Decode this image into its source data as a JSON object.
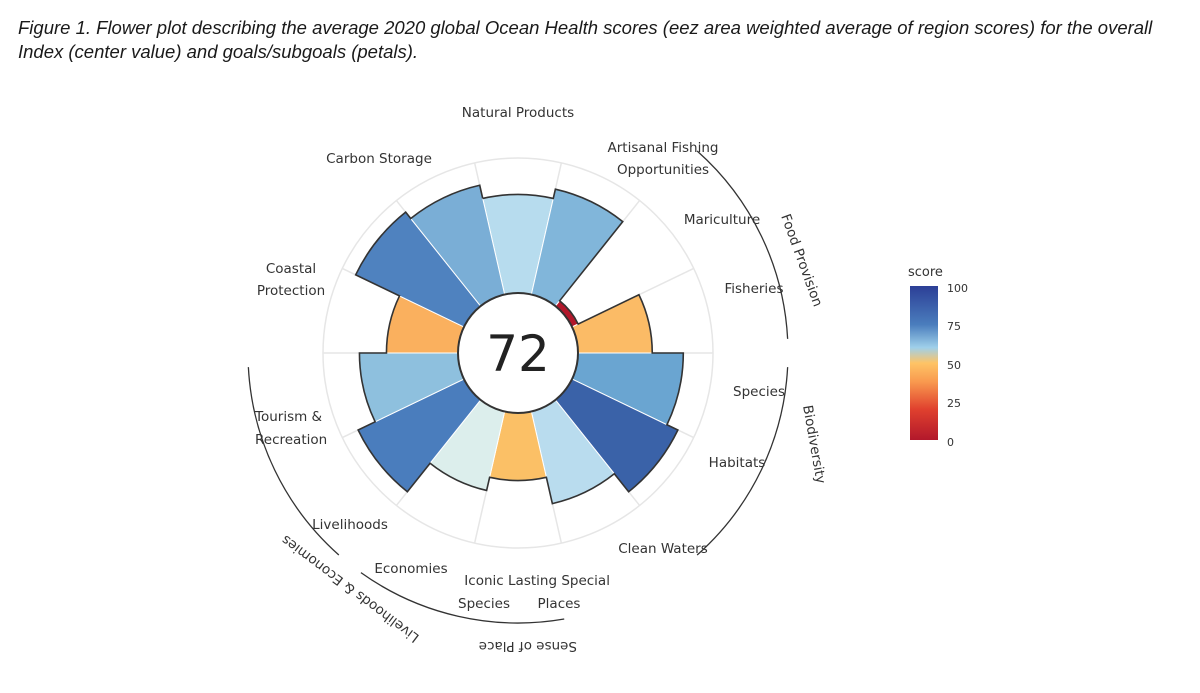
{
  "caption": "Figure 1. Flower plot describing the average 2020 global Ocean Health scores (eez area weighted average of region scores) for the overall Index (center value) and goals/subgoals (petals).",
  "chart_data": {
    "type": "flower",
    "index_score": 72,
    "score_range": [
      0,
      100
    ],
    "petals": [
      {
        "label": "Natural Products",
        "score": 73,
        "color": "#b7dcee"
      },
      {
        "label": "Artisanal Fishing Opportunities",
        "score": 80,
        "color": "#81b6da"
      },
      {
        "label": "Mariculture",
        "score": 5,
        "color": "#b2182b"
      },
      {
        "label": "Fisheries",
        "score": 55,
        "color": "#fbbb66"
      },
      {
        "label": "Species",
        "score": 78,
        "color": "#6aa5d1"
      },
      {
        "label": "Habitats",
        "score": 87,
        "color": "#3a62a8"
      },
      {
        "label": "Clean Waters",
        "score": 70,
        "color": "#b9dcee"
      },
      {
        "label": "Lasting Special Places",
        "score": 50,
        "color": "#fbc066"
      },
      {
        "label": "Iconic Species",
        "score": 60,
        "color": "#dceeec"
      },
      {
        "label": "Economies",
        "score": 87,
        "color": "#4a7dbd"
      },
      {
        "label": "Livelihoods",
        "score": 73,
        "color": "#8ec0de"
      },
      {
        "label": "Tourism & Recreation",
        "score": 53,
        "color": "#fab05e"
      },
      {
        "label": "Coastal Protection",
        "score": 89,
        "color": "#4f82bf"
      },
      {
        "label": "Carbon Storage",
        "score": 83,
        "color": "#7aaed6"
      }
    ],
    "petal_labels": {
      "natural_products": "Natural Products",
      "artisanal_fishing_1": "Artisanal Fishing",
      "artisanal_fishing_2": "Opportunities",
      "mariculture": "Mariculture",
      "fisheries": "Fisheries",
      "species": "Species",
      "habitats": "Habitats",
      "clean_waters": "Clean Waters",
      "iconic_1": "Iconic",
      "iconic_2": "Species",
      "lasting_1": "Lasting Special",
      "lasting_2": "Places",
      "economies": "Economies",
      "livelihoods": "Livelihoods",
      "tourism_1": "Tourism &",
      "tourism_2": "Recreation",
      "coastal_1": "Coastal",
      "coastal_2": "Protection",
      "carbon_storage": "Carbon Storage"
    },
    "groups": [
      {
        "label": "Food Provision",
        "members": [
          "Mariculture",
          "Fisheries"
        ]
      },
      {
        "label": "Biodiversity",
        "members": [
          "Species",
          "Habitats"
        ]
      },
      {
        "label": "Sense of Place",
        "members": [
          "Iconic Species",
          "Lasting Special Places"
        ]
      },
      {
        "label": "Livelihoods & Economies",
        "members": [
          "Economies",
          "Livelihoods"
        ]
      }
    ],
    "legend": {
      "title": "score",
      "ticks": [
        "100",
        "75",
        "50",
        "25",
        "0"
      ],
      "tick_values": [
        100,
        75,
        50,
        25,
        0
      ],
      "colors": [
        "#2c3f96",
        "#4a7dbd",
        "#9fd0ea",
        "#fec466",
        "#f99a4f",
        "#e0412e",
        "#b2182b"
      ]
    }
  }
}
